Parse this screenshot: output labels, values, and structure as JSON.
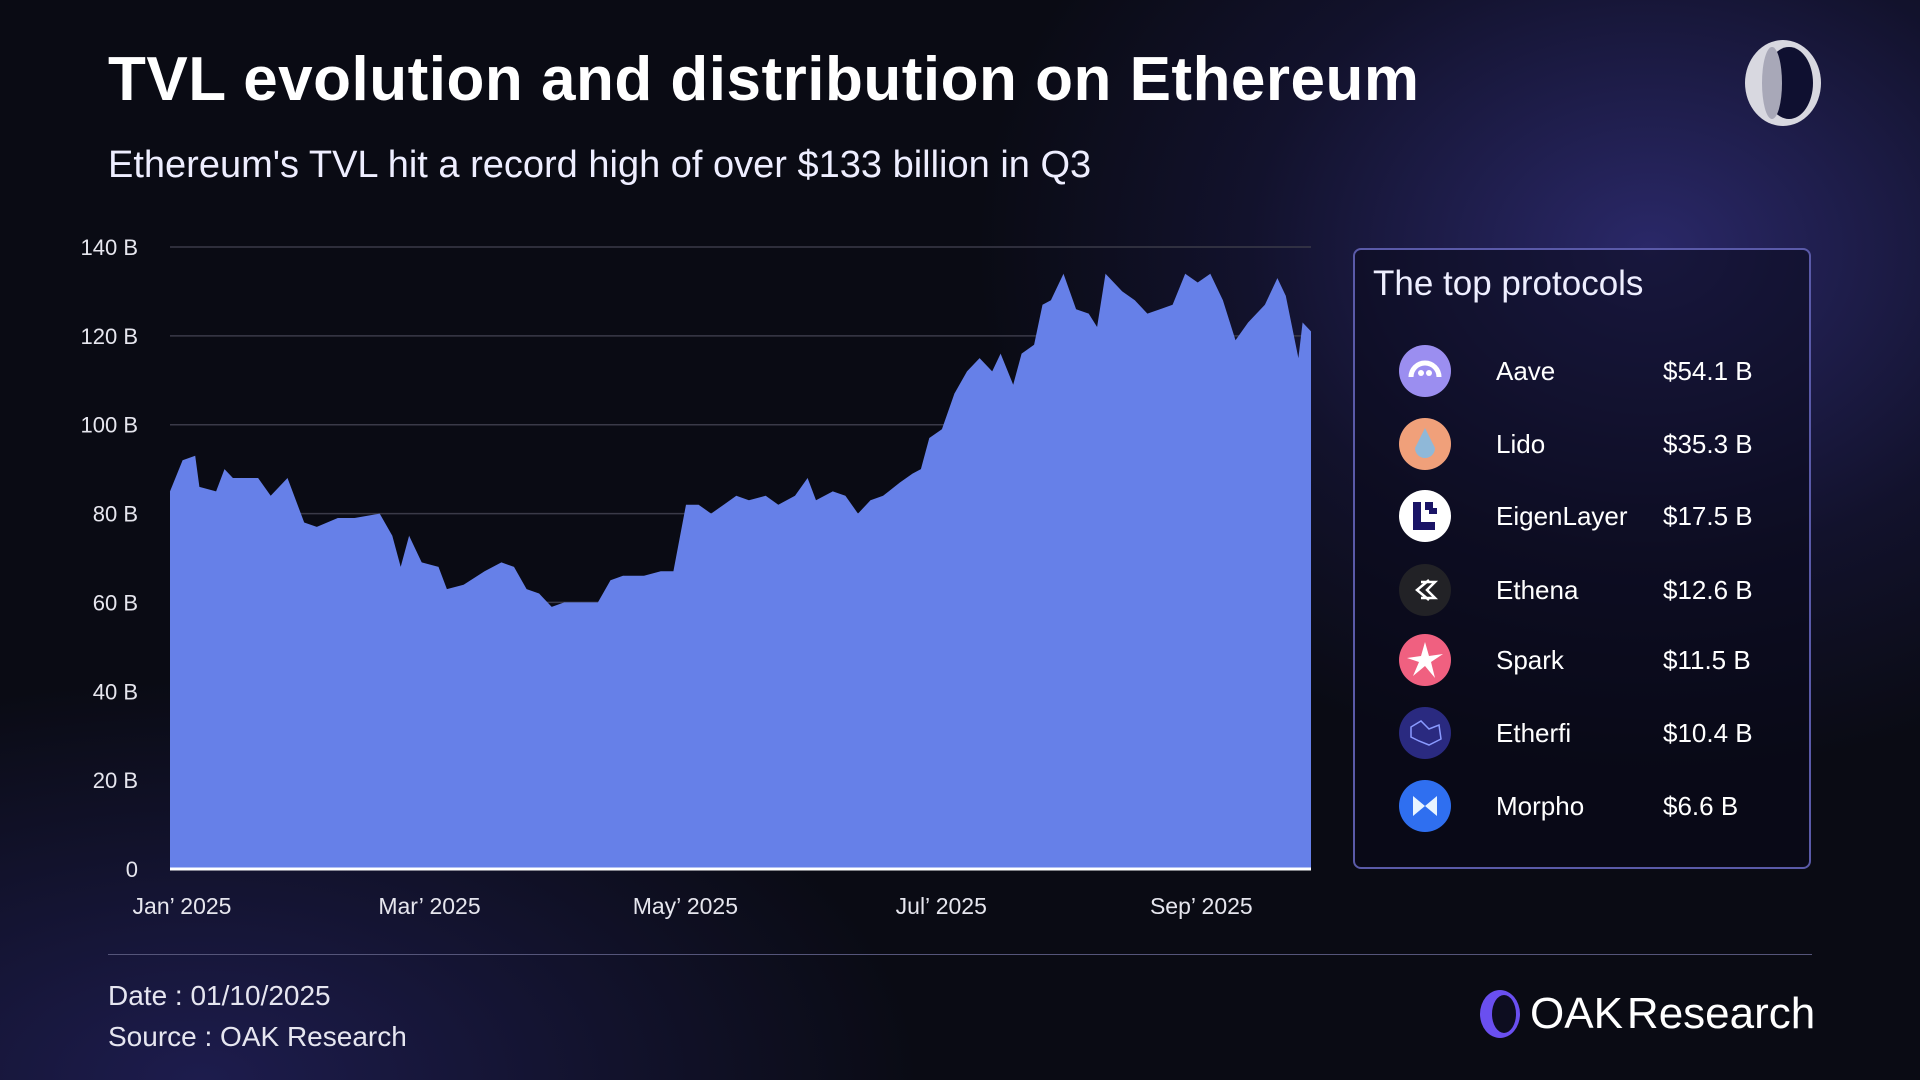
{
  "title": "TVL evolution and distribution on Ethereum",
  "subtitle": "Ethereum's TVL hit a record high of over $133 billion in Q3",
  "panel": {
    "title": "The top protocols",
    "protocols": [
      {
        "name": "Aave",
        "value": "$54.1 B",
        "icon": "aave-ghost-icon",
        "color": "#9b8ef0"
      },
      {
        "name": "Lido",
        "value": "$35.3 B",
        "icon": "lido-drop-icon",
        "color": "#f0a07a"
      },
      {
        "name": "EigenLayer",
        "value": "$17.5 B",
        "icon": "eigenlayer-icon",
        "color": "#ffffff"
      },
      {
        "name": "Ethena",
        "value": "$12.6 B",
        "icon": "ethena-icon",
        "color": "#222226"
      },
      {
        "name": "Spark",
        "value": "$11.5 B",
        "icon": "spark-star-icon",
        "color": "#f06080"
      },
      {
        "name": "Etherfi",
        "value": "$10.4 B",
        "icon": "etherfi-icon",
        "color": "#2a2a80"
      },
      {
        "name": "Morpho",
        "value": "$6.6 B",
        "icon": "morpho-butterfly-icon",
        "color": "#2f6ff0"
      }
    ]
  },
  "footer": {
    "date": "Date : 01/10/2025",
    "source": "Source : OAK Research",
    "brand_a": "OAK",
    "brand_b": "Research"
  },
  "chart_data": {
    "type": "area",
    "title": "",
    "xlabel": "",
    "ylabel": "",
    "ylim": [
      0,
      140
    ],
    "grid": true,
    "color": "#6680e8",
    "y_ticks": [
      "0",
      "20 B",
      "40 B",
      "60 B",
      "80 B",
      "100 B",
      "120 B",
      "140 B"
    ],
    "x_ticks": [
      {
        "date": "2025-01-01",
        "label": "Jan’ 2025"
      },
      {
        "date": "2025-03-01",
        "label": "Mar’ 2025"
      },
      {
        "date": "2025-05-01",
        "label": "May’ 2025"
      },
      {
        "date": "2025-07-01",
        "label": "Jul’ 2025"
      },
      {
        "date": "2025-09-01",
        "label": "Sep’ 2025"
      }
    ],
    "xrange": [
      "2025-01-01",
      "2025-09-30"
    ],
    "x": [
      "2025-01-01",
      "2025-01-04",
      "2025-01-07",
      "2025-01-08",
      "2025-01-12",
      "2025-01-14",
      "2025-01-16",
      "2025-01-18",
      "2025-01-22",
      "2025-01-25",
      "2025-01-29",
      "2025-02-02",
      "2025-02-05",
      "2025-02-10",
      "2025-02-14",
      "2025-02-20",
      "2025-02-23",
      "2025-02-25",
      "2025-02-27",
      "2025-03-02",
      "2025-03-06",
      "2025-03-08",
      "2025-03-12",
      "2025-03-17",
      "2025-03-21",
      "2025-03-24",
      "2025-03-27",
      "2025-03-30",
      "2025-04-02",
      "2025-04-05",
      "2025-04-09",
      "2025-04-13",
      "2025-04-16",
      "2025-04-19",
      "2025-04-24",
      "2025-04-28",
      "2025-05-01",
      "2025-05-04",
      "2025-05-07",
      "2025-05-10",
      "2025-05-13",
      "2025-05-16",
      "2025-05-19",
      "2025-05-23",
      "2025-05-26",
      "2025-05-30",
      "2025-06-02",
      "2025-06-04",
      "2025-06-08",
      "2025-06-11",
      "2025-06-14",
      "2025-06-17",
      "2025-06-20",
      "2025-06-24",
      "2025-06-27",
      "2025-06-29",
      "2025-07-01",
      "2025-07-04",
      "2025-07-07",
      "2025-07-10",
      "2025-07-13",
      "2025-07-16",
      "2025-07-18",
      "2025-07-21",
      "2025-07-23",
      "2025-07-26",
      "2025-07-28",
      "2025-07-30",
      "2025-08-02",
      "2025-08-05",
      "2025-08-08",
      "2025-08-10",
      "2025-08-12",
      "2025-08-14",
      "2025-08-16",
      "2025-08-19",
      "2025-08-22",
      "2025-08-25",
      "2025-08-28",
      "2025-08-31",
      "2025-09-03",
      "2025-09-06",
      "2025-09-09",
      "2025-09-12",
      "2025-09-15",
      "2025-09-19",
      "2025-09-22",
      "2025-09-24",
      "2025-09-27",
      "2025-09-28",
      "2025-09-30"
    ],
    "series": [
      {
        "values": [
          85,
          92,
          93,
          86,
          85,
          90,
          88,
          88,
          88,
          84,
          88,
          78,
          77,
          79,
          79,
          80,
          75,
          68,
          75,
          69,
          68,
          63,
          64,
          67,
          69,
          68,
          63,
          62,
          59,
          60,
          60,
          60,
          65,
          66,
          66,
          67,
          67,
          82,
          82,
          80,
          82,
          84,
          83,
          84,
          82,
          84,
          88,
          83,
          85,
          84,
          80,
          83,
          84,
          87,
          89,
          90,
          97,
          99,
          107,
          112,
          115,
          112,
          116,
          109,
          116,
          118,
          127,
          128,
          134,
          126,
          125,
          122,
          134,
          132,
          130,
          128,
          125,
          126,
          127,
          134,
          132,
          134,
          128,
          119,
          123,
          127,
          133,
          129,
          115,
          123,
          121
        ]
      }
    ]
  }
}
